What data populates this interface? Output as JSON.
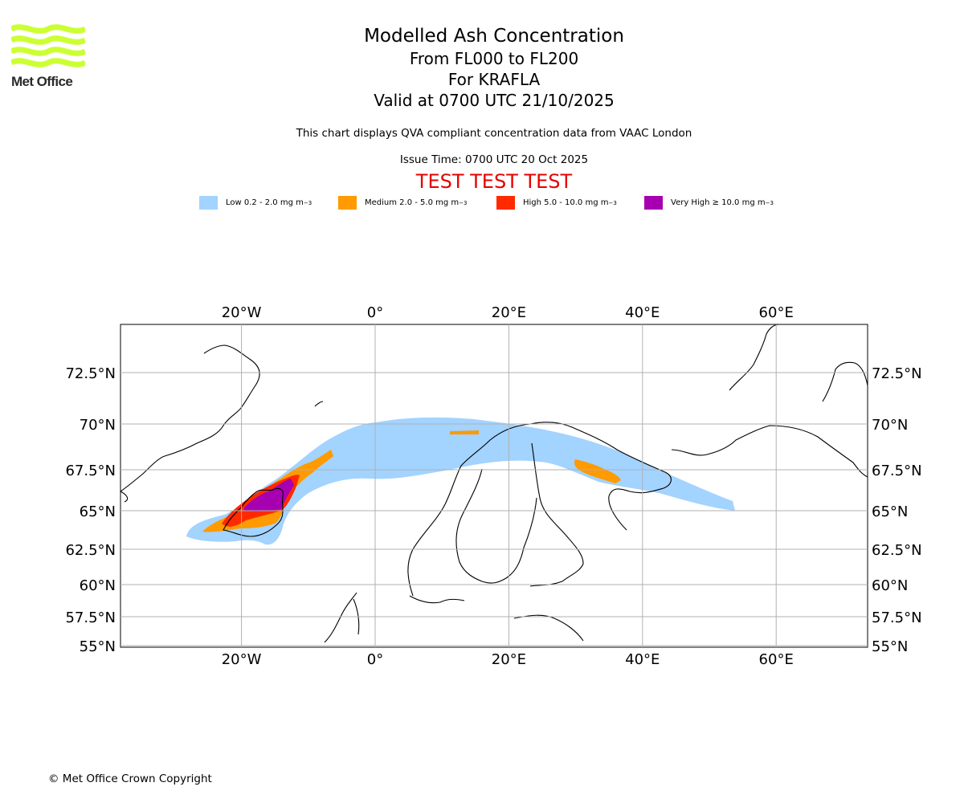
{
  "logo": {
    "text": "Met Office",
    "brand_color": "#ccff33"
  },
  "header": {
    "title": "Modelled Ash Concentration",
    "levels": "From FL000 to FL200",
    "volcano": "For KRAFLA",
    "valid": "Valid at 0700 UTC 21/10/2025",
    "description": "This chart displays QVA compliant concentration data from VAAC London",
    "issue_time": "Issue Time: 0700 UTC 20 Oct 2025",
    "test_banner": "TEST TEST TEST"
  },
  "legend": [
    {
      "label": "Low 0.2 - 2.0 mg m",
      "sup": "−3",
      "color": "#a3d3ff"
    },
    {
      "label": "Medium 2.0 - 5.0 mg m",
      "sup": "−3",
      "color": "#ff9a00"
    },
    {
      "label": "High 5.0 - 10.0 mg m",
      "sup": "−3",
      "color": "#ff2a00"
    },
    {
      "label": "Very High ≥ 10.0 mg m",
      "sup": "−3",
      "color": "#a600b0"
    }
  ],
  "map": {
    "lon_ticks": [
      {
        "value": -20,
        "label": "20°W"
      },
      {
        "value": 0,
        "label": "0°"
      },
      {
        "value": 20,
        "label": "20°E"
      },
      {
        "value": 40,
        "label": "40°E"
      },
      {
        "value": 60,
        "label": "60°E"
      }
    ],
    "lat_ticks": [
      {
        "value": 72.5,
        "label": "72.5°N"
      },
      {
        "value": 70,
        "label": "70°N"
      },
      {
        "value": 67.5,
        "label": "67.5°N"
      },
      {
        "value": 65,
        "label": "65°N"
      },
      {
        "value": 62.5,
        "label": "62.5°N"
      },
      {
        "value": 60,
        "label": "60°N"
      },
      {
        "value": 57.5,
        "label": "57.5°N"
      },
      {
        "value": 55,
        "label": "55°N"
      }
    ],
    "lon_range": [
      -38,
      74
    ],
    "lat_range": [
      55,
      75
    ]
  },
  "footer": {
    "copyright": "© Met Office Crown Copyright"
  }
}
